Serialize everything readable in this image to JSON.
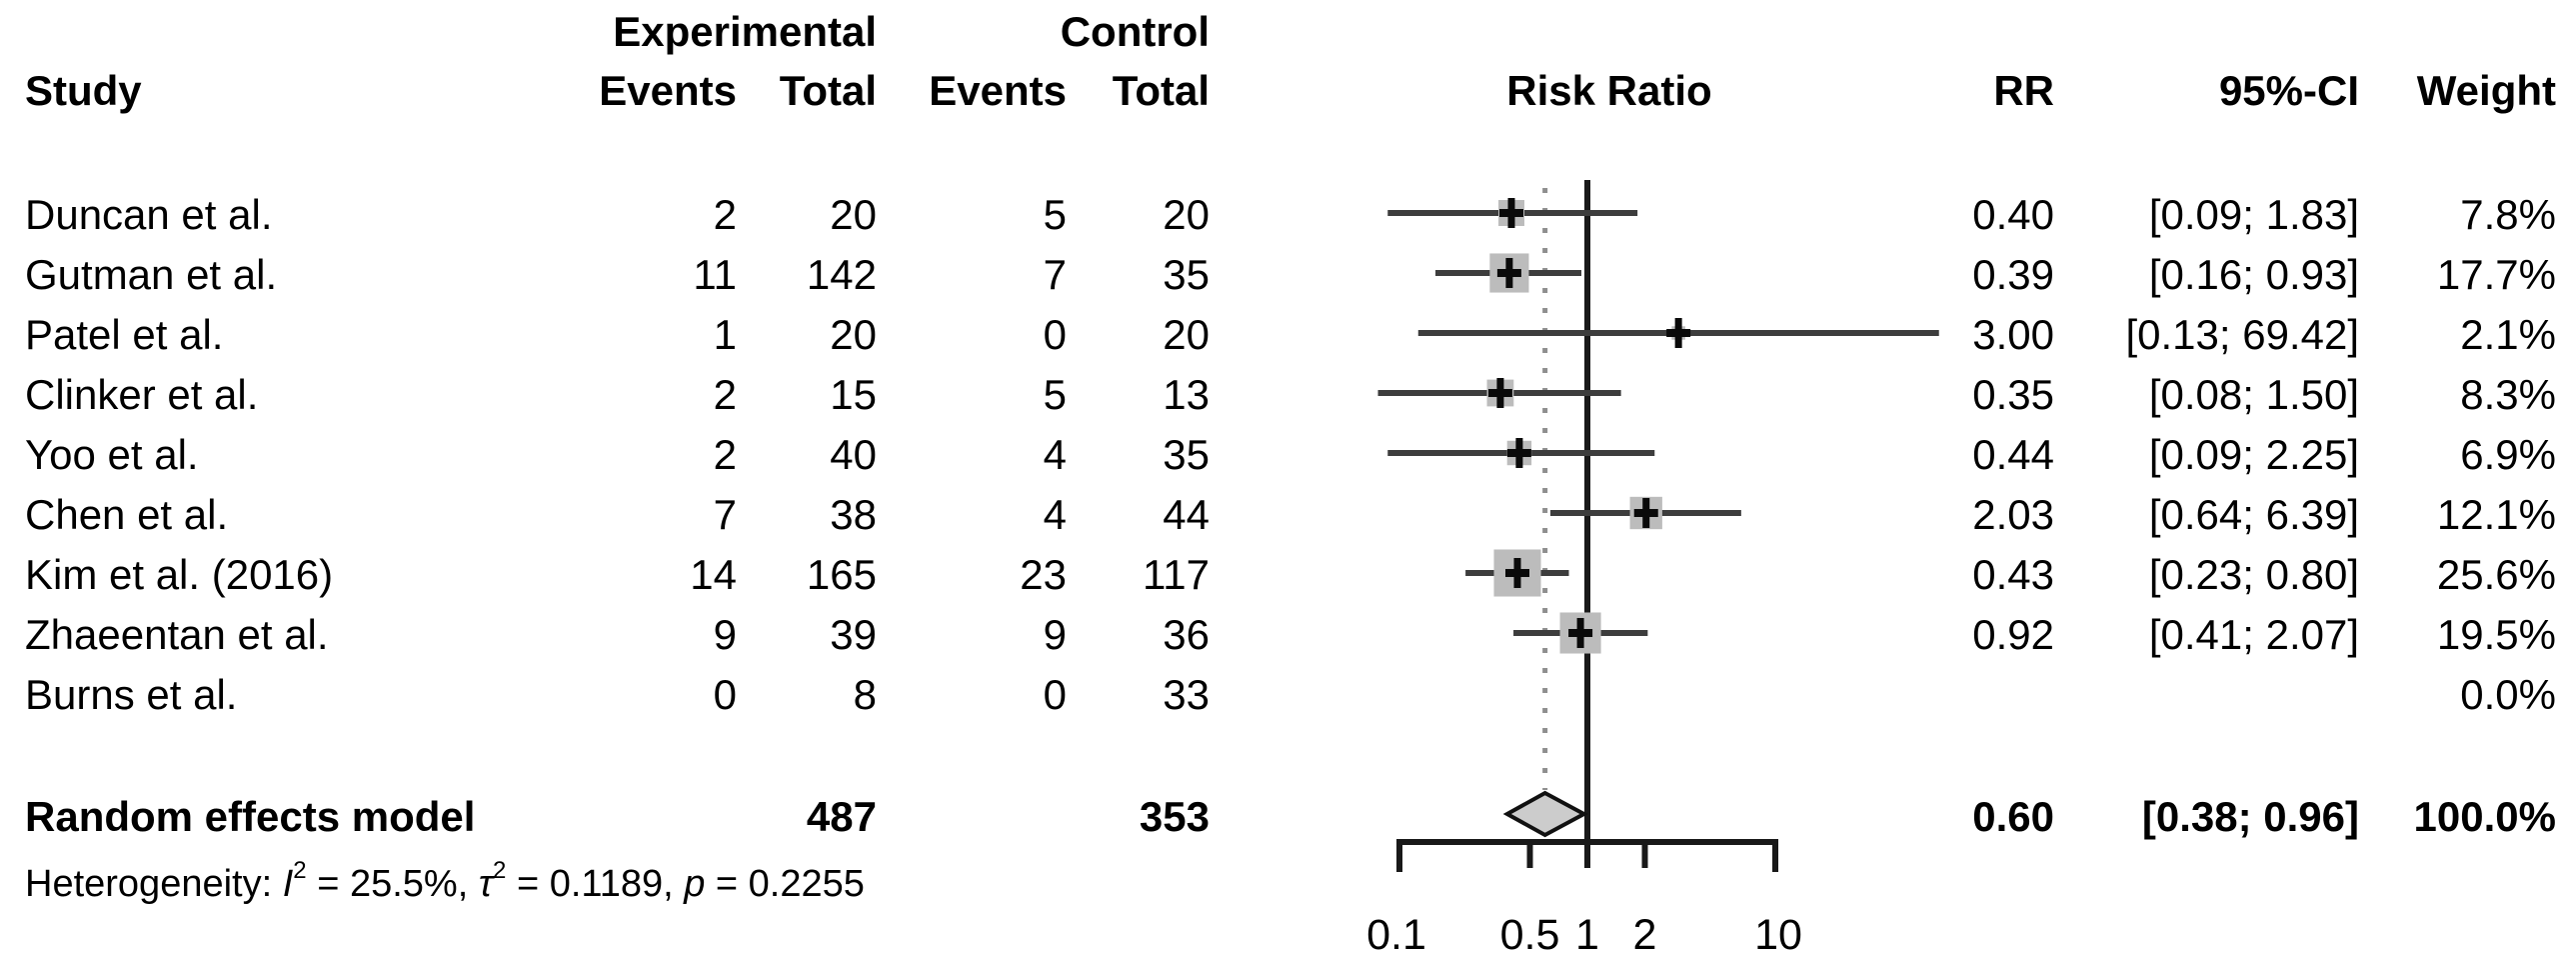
{
  "header": {
    "study": "Study",
    "experimental_group": "Experimental",
    "control_group": "Control",
    "exp_events": "Events",
    "exp_total": "Total",
    "ctrl_events": "Events",
    "ctrl_total": "Total",
    "risk_ratio": "Risk Ratio",
    "rr": "RR",
    "ci": "95%-CI",
    "weight": "Weight"
  },
  "rows": [
    {
      "study": "Duncan et al.",
      "exp_events": "2",
      "exp_total": "20",
      "ctrl_events": "5",
      "ctrl_total": "20",
      "rr": "0.40",
      "ci": "[0.09; 1.83]",
      "weight": "7.8%"
    },
    {
      "study": "Gutman et al.",
      "exp_events": "11",
      "exp_total": "142",
      "ctrl_events": "7",
      "ctrl_total": "35",
      "rr": "0.39",
      "ci": "[0.16; 0.93]",
      "weight": "17.7%"
    },
    {
      "study": "Patel et al.",
      "exp_events": "1",
      "exp_total": "20",
      "ctrl_events": "0",
      "ctrl_total": "20",
      "rr": "3.00",
      "ci": "[0.13; 69.42]",
      "weight": "2.1%"
    },
    {
      "study": "Clinker et al.",
      "exp_events": "2",
      "exp_total": "15",
      "ctrl_events": "5",
      "ctrl_total": "13",
      "rr": "0.35",
      "ci": "[0.08; 1.50]",
      "weight": "8.3%"
    },
    {
      "study": "Yoo et al.",
      "exp_events": "2",
      "exp_total": "40",
      "ctrl_events": "4",
      "ctrl_total": "35",
      "rr": "0.44",
      "ci": "[0.09; 2.25]",
      "weight": "6.9%"
    },
    {
      "study": "Chen et al.",
      "exp_events": "7",
      "exp_total": "38",
      "ctrl_events": "4",
      "ctrl_total": "44",
      "rr": "2.03",
      "ci": "[0.64; 6.39]",
      "weight": "12.1%"
    },
    {
      "study": "Kim et al. (2016)",
      "exp_events": "14",
      "exp_total": "165",
      "ctrl_events": "23",
      "ctrl_total": "117",
      "rr": "0.43",
      "ci": "[0.23; 0.80]",
      "weight": "25.6%"
    },
    {
      "study": "Zhaeentan et al.",
      "exp_events": "9",
      "exp_total": "39",
      "ctrl_events": "9",
      "ctrl_total": "36",
      "rr": "0.92",
      "ci": "[0.41; 2.07]",
      "weight": "19.5%"
    },
    {
      "study": "Burns et al.",
      "exp_events": "0",
      "exp_total": "8",
      "ctrl_events": "0",
      "ctrl_total": "33",
      "rr": "",
      "ci": "",
      "weight": "0.0%"
    }
  ],
  "summary_row": {
    "label": "Random effects model",
    "exp_total": "487",
    "ctrl_total": "353",
    "rr": "0.60",
    "ci": "[0.38; 0.96]",
    "weight": "100.0%"
  },
  "heterogeneity": {
    "prefix": "Heterogeneity: ",
    "i2_symbol": "I",
    "i2_sup": "2",
    "i2_value": " = 25.5%, ",
    "tau_symbol": "τ",
    "tau_sup": "2",
    "tau_value": " = 0.1189, ",
    "p_symbol": "p",
    "p_value": " = 0.2255"
  },
  "chart_data": {
    "type": "forest",
    "effect_measure": "Risk Ratio",
    "x_scale": "log10",
    "x_ticks": [
      0.1,
      0.5,
      1,
      2,
      10
    ],
    "tick_labels": [
      "0.1",
      "0.5",
      "1",
      "2",
      "10"
    ],
    "reference_line": 1.0,
    "pooled_dotted_line": 0.6,
    "studies": [
      {
        "name": "Duncan et al.",
        "rr": 0.4,
        "ci_low": 0.09,
        "ci_high": 1.83,
        "weight_pct": 7.8
      },
      {
        "name": "Gutman et al.",
        "rr": 0.39,
        "ci_low": 0.16,
        "ci_high": 0.93,
        "weight_pct": 17.7
      },
      {
        "name": "Patel et al.",
        "rr": 3.0,
        "ci_low": 0.13,
        "ci_high": 69.42,
        "weight_pct": 2.1
      },
      {
        "name": "Clinker et al.",
        "rr": 0.35,
        "ci_low": 0.08,
        "ci_high": 1.5,
        "weight_pct": 8.3
      },
      {
        "name": "Yoo et al.",
        "rr": 0.44,
        "ci_low": 0.09,
        "ci_high": 2.25,
        "weight_pct": 6.9
      },
      {
        "name": "Chen et al.",
        "rr": 2.03,
        "ci_low": 0.64,
        "ci_high": 6.39,
        "weight_pct": 12.1
      },
      {
        "name": "Kim et al. (2016)",
        "rr": 0.43,
        "ci_low": 0.23,
        "ci_high": 0.8,
        "weight_pct": 25.6
      },
      {
        "name": "Zhaeentan et al.",
        "rr": 0.92,
        "ci_low": 0.41,
        "ci_high": 2.07,
        "weight_pct": 19.5
      },
      {
        "name": "Burns et al.",
        "rr": null,
        "ci_low": null,
        "ci_high": null,
        "weight_pct": 0.0
      }
    ],
    "summary": {
      "label": "Random effects model",
      "rr": 0.6,
      "ci_low": 0.38,
      "ci_high": 0.96,
      "weight_pct": 100.0
    },
    "colors": {
      "square_fill": "#bcbcbc",
      "diamond_fill": "#cccccc",
      "diamond_stroke": "#111111",
      "ci_line": "#3d3d3d",
      "axis_line": "#191919",
      "dotted_line": "#8f8f8f",
      "marker": "#0a0a0a",
      "text": "#000000"
    }
  }
}
